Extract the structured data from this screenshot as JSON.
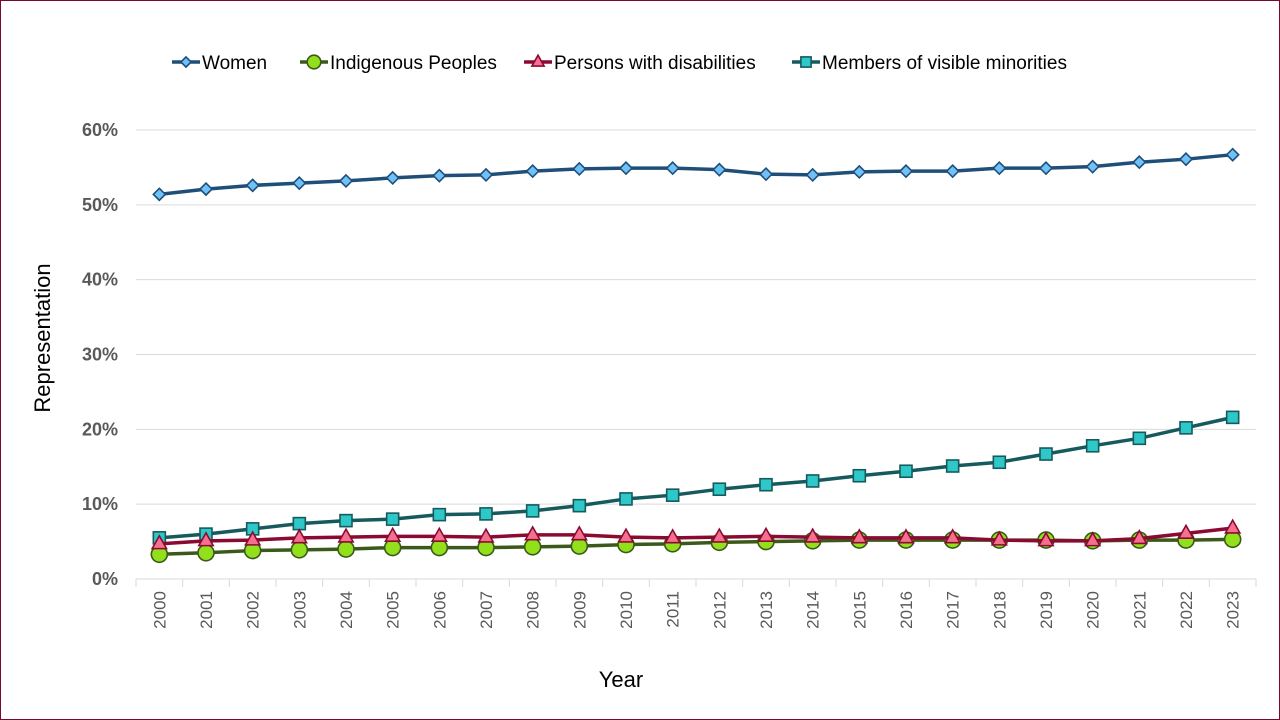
{
  "chart_data": {
    "type": "line",
    "title": "",
    "xlabel": "Year",
    "ylabel": "Representation",
    "ylim": [
      0,
      60
    ],
    "y_ticks": [
      "0%",
      "10%",
      "20%",
      "30%",
      "40%",
      "50%",
      "60%"
    ],
    "y_tick_values": [
      0,
      10,
      20,
      30,
      40,
      50,
      60
    ],
    "grid": true,
    "legend_position": "top",
    "categories": [
      "2000",
      "2001",
      "2002",
      "2003",
      "2004",
      "2005",
      "2006",
      "2007",
      "2008",
      "2009",
      "2010",
      "2011",
      "2012",
      "2013",
      "2014",
      "2015",
      "2016",
      "2017",
      "2018",
      "2019",
      "2020",
      "2021",
      "2022",
      "2023"
    ],
    "series": [
      {
        "name": "Women",
        "marker": "diamond",
        "line_color": "#1f4e79",
        "marker_fill": "#6fc1f7",
        "marker_stroke": "#1f4e79",
        "values": [
          51.4,
          52.1,
          52.6,
          52.9,
          53.2,
          53.6,
          53.9,
          54.0,
          54.5,
          54.8,
          54.9,
          54.9,
          54.7,
          54.1,
          54.0,
          54.4,
          54.5,
          54.5,
          54.9,
          54.9,
          55.1,
          55.7,
          56.1,
          56.7
        ]
      },
      {
        "name": "Indigenous Peoples",
        "marker": "circle",
        "line_color": "#3b5a1a",
        "marker_fill": "#92e01b",
        "marker_stroke": "#3b5a1a",
        "values": [
          3.3,
          3.5,
          3.8,
          3.9,
          4.0,
          4.2,
          4.2,
          4.2,
          4.3,
          4.4,
          4.6,
          4.7,
          4.9,
          5.0,
          5.1,
          5.2,
          5.2,
          5.2,
          5.2,
          5.2,
          5.1,
          5.2,
          5.2,
          5.3
        ]
      },
      {
        "name": "Persons with disabilities",
        "marker": "triangle",
        "line_color": "#8b0a32",
        "marker_fill": "#f5708f",
        "marker_stroke": "#8b0a32",
        "values": [
          4.7,
          5.1,
          5.2,
          5.5,
          5.6,
          5.7,
          5.7,
          5.6,
          5.9,
          5.9,
          5.6,
          5.5,
          5.6,
          5.7,
          5.6,
          5.5,
          5.5,
          5.5,
          5.2,
          5.1,
          5.1,
          5.4,
          6.1,
          6.8
        ]
      },
      {
        "name": "Members of visible minorities",
        "marker": "square",
        "line_color": "#165a5e",
        "marker_fill": "#2ec8c8",
        "marker_stroke": "#165a5e",
        "values": [
          5.5,
          6.0,
          6.7,
          7.4,
          7.8,
          8.0,
          8.6,
          8.7,
          9.1,
          9.8,
          10.7,
          11.2,
          12.0,
          12.6,
          13.1,
          13.8,
          14.4,
          15.1,
          15.6,
          16.7,
          17.8,
          18.8,
          20.2,
          21.6
        ]
      }
    ]
  },
  "colors": {
    "border": "#7a0a2a",
    "gridline": "#d9d9d9",
    "tick_text": "#595959"
  }
}
